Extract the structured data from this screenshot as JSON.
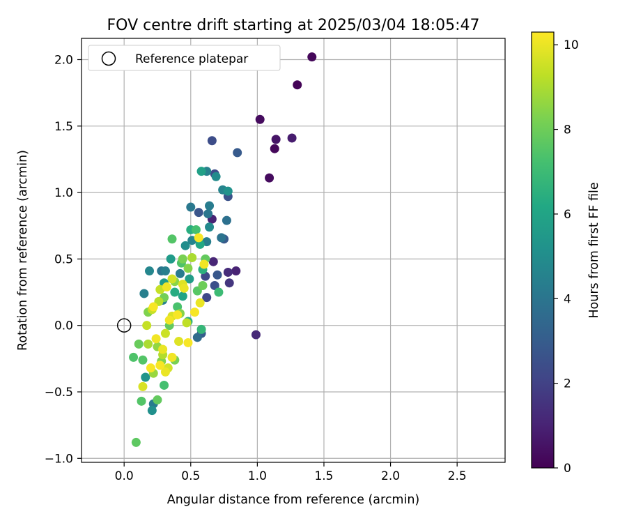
{
  "chart_data": {
    "type": "scatter",
    "title": "FOV centre drift starting at 2025/03/04 18:05:47",
    "xlabel": "Angular distance from reference (arcmin)",
    "ylabel": "Rotation from reference (arcmin)",
    "xlim": [
      -0.32,
      2.86
    ],
    "ylim": [
      -1.03,
      2.16
    ],
    "xticks": [
      0.0,
      0.5,
      1.0,
      1.5,
      2.0,
      2.5
    ],
    "xtick_labels": [
      "0.0",
      "0.5",
      "1.0",
      "1.5",
      "2.0",
      "2.5"
    ],
    "yticks": [
      -1.0,
      -0.5,
      0.0,
      0.5,
      1.0,
      1.5,
      2.0
    ],
    "ytick_labels": [
      "−1.0",
      "−0.5",
      "0.0",
      "0.5",
      "1.0",
      "1.5",
      "2.0"
    ],
    "grid": true,
    "legend": {
      "placement": "top-left",
      "entries": [
        "Reference platepar"
      ]
    },
    "reference": {
      "x": 0.0,
      "y": 0.0,
      "label": "Reference platepar"
    },
    "colorbar": {
      "label": "Hours from first FF file",
      "colormap": "viridis",
      "range": [
        0,
        10.3
      ],
      "ticks": [
        0,
        2,
        4,
        6,
        8,
        10
      ],
      "tick_labels": [
        "0",
        "2",
        "4",
        "6",
        "8",
        "10"
      ]
    },
    "series": [
      {
        "color_by": "hours",
        "points": [
          {
            "x": 1.41,
            "y": 2.02,
            "c": 0.2
          },
          {
            "x": 1.3,
            "y": 1.81,
            "c": 0.1
          },
          {
            "x": 1.02,
            "y": 1.55,
            "c": 0.3
          },
          {
            "x": 1.14,
            "y": 1.4,
            "c": 0.6
          },
          {
            "x": 1.26,
            "y": 1.41,
            "c": 0.8
          },
          {
            "x": 1.13,
            "y": 1.33,
            "c": 0.2
          },
          {
            "x": 1.09,
            "y": 1.11,
            "c": 0.3
          },
          {
            "x": 0.99,
            "y": -0.07,
            "c": 1.2
          },
          {
            "x": 0.84,
            "y": 0.41,
            "c": 1.0
          },
          {
            "x": 0.78,
            "y": 0.4,
            "c": 1.3
          },
          {
            "x": 0.79,
            "y": 0.32,
            "c": 1.6
          },
          {
            "x": 0.67,
            "y": 0.48,
            "c": 1.1
          },
          {
            "x": 0.66,
            "y": 0.8,
            "c": 1.0
          },
          {
            "x": 0.66,
            "y": 1.39,
            "c": 2.4
          },
          {
            "x": 0.85,
            "y": 1.3,
            "c": 2.9
          },
          {
            "x": 0.78,
            "y": 0.97,
            "c": 2.6
          },
          {
            "x": 0.75,
            "y": 0.65,
            "c": 2.9
          },
          {
            "x": 0.68,
            "y": 1.14,
            "c": 2.3
          },
          {
            "x": 0.56,
            "y": 0.85,
            "c": 2.7
          },
          {
            "x": 0.61,
            "y": 0.37,
            "c": 2.2
          },
          {
            "x": 0.7,
            "y": 0.38,
            "c": 2.8
          },
          {
            "x": 0.62,
            "y": 0.21,
            "c": 2.2
          },
          {
            "x": 0.68,
            "y": 0.3,
            "c": 2.5
          },
          {
            "x": 0.58,
            "y": -0.06,
            "c": 3.0
          },
          {
            "x": 0.62,
            "y": 1.16,
            "c": 4.5
          },
          {
            "x": 0.69,
            "y": 1.12,
            "c": 4.9
          },
          {
            "x": 0.74,
            "y": 1.02,
            "c": 4.6
          },
          {
            "x": 0.78,
            "y": 1.01,
            "c": 5.2
          },
          {
            "x": 0.63,
            "y": 0.84,
            "c": 4.0
          },
          {
            "x": 0.64,
            "y": 0.9,
            "c": 4.3
          },
          {
            "x": 0.5,
            "y": 0.89,
            "c": 4.1
          },
          {
            "x": 0.64,
            "y": 0.74,
            "c": 4.8
          },
          {
            "x": 0.77,
            "y": 0.79,
            "c": 3.8
          },
          {
            "x": 0.62,
            "y": 0.63,
            "c": 4.4
          },
          {
            "x": 0.73,
            "y": 0.66,
            "c": 3.9
          },
          {
            "x": 0.46,
            "y": 0.6,
            "c": 5.0
          },
          {
            "x": 0.51,
            "y": 0.64,
            "c": 4.6
          },
          {
            "x": 0.19,
            "y": 0.41,
            "c": 4.7
          },
          {
            "x": 0.28,
            "y": 0.41,
            "c": 4.0
          },
          {
            "x": 0.31,
            "y": 0.41,
            "c": 4.4
          },
          {
            "x": 0.42,
            "y": 0.39,
            "c": 4.2
          },
          {
            "x": 0.15,
            "y": 0.24,
            "c": 4.4
          },
          {
            "x": 0.29,
            "y": 0.19,
            "c": 4.5
          },
          {
            "x": 0.22,
            "y": -0.59,
            "c": 4.3
          },
          {
            "x": 0.55,
            "y": -0.09,
            "c": 3.6
          },
          {
            "x": 0.21,
            "y": -0.64,
            "c": 5.1
          },
          {
            "x": 0.16,
            "y": -0.39,
            "c": 5.3
          },
          {
            "x": 0.58,
            "y": 1.16,
            "c": 5.8
          },
          {
            "x": 0.57,
            "y": 0.61,
            "c": 6.2
          },
          {
            "x": 0.5,
            "y": 0.72,
            "c": 6.4
          },
          {
            "x": 0.35,
            "y": 0.5,
            "c": 5.6
          },
          {
            "x": 0.49,
            "y": 0.35,
            "c": 5.7
          },
          {
            "x": 0.59,
            "y": 0.42,
            "c": 6.5
          },
          {
            "x": 0.44,
            "y": 0.22,
            "c": 6.0
          },
          {
            "x": 0.3,
            "y": 0.32,
            "c": 5.6
          },
          {
            "x": 0.38,
            "y": 0.25,
            "c": 6.3
          },
          {
            "x": 0.58,
            "y": -0.03,
            "c": 6.8
          },
          {
            "x": 0.48,
            "y": 0.03,
            "c": 6.4
          },
          {
            "x": 0.54,
            "y": 0.72,
            "c": 7.2
          },
          {
            "x": 0.36,
            "y": 0.65,
            "c": 7.5
          },
          {
            "x": 0.61,
            "y": 0.5,
            "c": 7.8
          },
          {
            "x": 0.43,
            "y": 0.47,
            "c": 7.4
          },
          {
            "x": 0.71,
            "y": 0.25,
            "c": 7.0
          },
          {
            "x": 0.55,
            "y": 0.26,
            "c": 7.6
          },
          {
            "x": 0.4,
            "y": 0.14,
            "c": 7.3
          },
          {
            "x": 0.34,
            "y": 0.0,
            "c": 7.8
          },
          {
            "x": 0.11,
            "y": -0.14,
            "c": 7.9
          },
          {
            "x": 0.07,
            "y": -0.24,
            "c": 7.4
          },
          {
            "x": 0.14,
            "y": -0.26,
            "c": 7.5
          },
          {
            "x": 0.3,
            "y": -0.45,
            "c": 7.2
          },
          {
            "x": 0.25,
            "y": -0.56,
            "c": 7.8
          },
          {
            "x": 0.13,
            "y": -0.57,
            "c": 7.5
          },
          {
            "x": 0.09,
            "y": -0.88,
            "c": 7.7
          },
          {
            "x": 0.59,
            "y": 0.3,
            "c": 8.0
          },
          {
            "x": 0.44,
            "y": 0.5,
            "c": 8.2
          },
          {
            "x": 0.48,
            "y": 0.43,
            "c": 8.4
          },
          {
            "x": 0.38,
            "y": 0.33,
            "c": 8.5
          },
          {
            "x": 0.3,
            "y": 0.21,
            "c": 8.1
          },
          {
            "x": 0.42,
            "y": 0.09,
            "c": 8.4
          },
          {
            "x": 0.25,
            "y": -0.16,
            "c": 8.6
          },
          {
            "x": 0.38,
            "y": -0.26,
            "c": 8.2
          },
          {
            "x": 0.28,
            "y": -0.27,
            "c": 8.4
          },
          {
            "x": 0.22,
            "y": -0.36,
            "c": 8.7
          },
          {
            "x": 0.18,
            "y": 0.1,
            "c": 8.3
          },
          {
            "x": 0.51,
            "y": 0.51,
            "c": 9.0
          },
          {
            "x": 0.36,
            "y": 0.35,
            "c": 9.6
          },
          {
            "x": 0.27,
            "y": 0.27,
            "c": 9.4
          },
          {
            "x": 0.44,
            "y": 0.31,
            "c": 9.8
          },
          {
            "x": 0.26,
            "y": 0.18,
            "c": 9.2
          },
          {
            "x": 0.21,
            "y": 0.12,
            "c": 9.4
          },
          {
            "x": 0.36,
            "y": 0.07,
            "c": 9.7
          },
          {
            "x": 0.47,
            "y": 0.02,
            "c": 9.3
          },
          {
            "x": 0.31,
            "y": -0.06,
            "c": 9.5
          },
          {
            "x": 0.41,
            "y": -0.12,
            "c": 9.8
          },
          {
            "x": 0.29,
            "y": -0.22,
            "c": 9.1
          },
          {
            "x": 0.33,
            "y": -0.32,
            "c": 9.6
          },
          {
            "x": 0.18,
            "y": -0.14,
            "c": 9.0
          },
          {
            "x": 0.17,
            "y": 0.0,
            "c": 9.4
          },
          {
            "x": 0.14,
            "y": -0.46,
            "c": 9.7
          },
          {
            "x": 0.56,
            "y": 0.66,
            "c": 10.2
          },
          {
            "x": 0.6,
            "y": 0.46,
            "c": 10.1
          },
          {
            "x": 0.57,
            "y": 0.17,
            "c": 10.0
          },
          {
            "x": 0.4,
            "y": 0.08,
            "c": 10.2
          },
          {
            "x": 0.34,
            "y": 0.04,
            "c": 10.1
          },
          {
            "x": 0.48,
            "y": -0.13,
            "c": 10.2
          },
          {
            "x": 0.29,
            "y": -0.18,
            "c": 10.0
          },
          {
            "x": 0.24,
            "y": -0.1,
            "c": 10.1
          },
          {
            "x": 0.22,
            "y": 0.14,
            "c": 10.2
          },
          {
            "x": 0.31,
            "y": -0.35,
            "c": 10.0
          },
          {
            "x": 0.27,
            "y": -0.3,
            "c": 10.2
          },
          {
            "x": 0.32,
            "y": 0.29,
            "c": 10.1
          },
          {
            "x": 0.45,
            "y": 0.28,
            "c": 10.0
          },
          {
            "x": 0.53,
            "y": 0.1,
            "c": 10.2
          },
          {
            "x": 0.36,
            "y": -0.24,
            "c": 10.1
          },
          {
            "x": 0.2,
            "y": -0.32,
            "c": 10.2
          }
        ]
      }
    ]
  }
}
